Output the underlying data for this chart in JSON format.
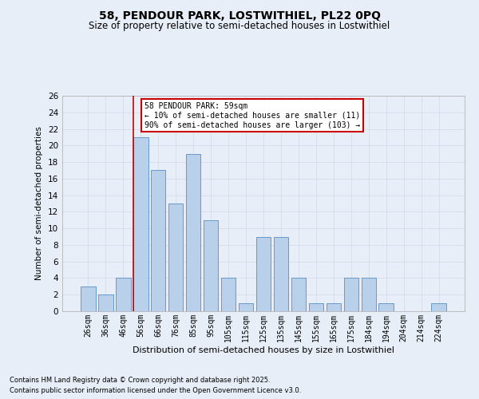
{
  "title1": "58, PENDOUR PARK, LOSTWITHIEL, PL22 0PQ",
  "title2": "Size of property relative to semi-detached houses in Lostwithiel",
  "xlabel": "Distribution of semi-detached houses by size in Lostwithiel",
  "ylabel": "Number of semi-detached properties",
  "categories": [
    "26sqm",
    "36sqm",
    "46sqm",
    "56sqm",
    "66sqm",
    "76sqm",
    "85sqm",
    "95sqm",
    "105sqm",
    "115sqm",
    "125sqm",
    "135sqm",
    "145sqm",
    "155sqm",
    "165sqm",
    "175sqm",
    "184sqm",
    "194sqm",
    "204sqm",
    "214sqm",
    "224sqm"
  ],
  "values": [
    3,
    2,
    4,
    21,
    17,
    13,
    19,
    11,
    4,
    1,
    9,
    9,
    4,
    1,
    1,
    4,
    4,
    1,
    0,
    0,
    1
  ],
  "bar_color": "#b8d0ea",
  "bar_edge_color": "#6699cc",
  "vline_color": "#cc0000",
  "vline_x_index": 3,
  "annotation_title": "58 PENDOUR PARK: 59sqm",
  "annotation_line1": "← 10% of semi-detached houses are smaller (11)",
  "annotation_line2": "90% of semi-detached houses are larger (103) →",
  "annotation_box_color": "#ffffff",
  "annotation_box_edge": "#cc0000",
  "ylim": [
    0,
    26
  ],
  "yticks": [
    0,
    2,
    4,
    6,
    8,
    10,
    12,
    14,
    16,
    18,
    20,
    22,
    24,
    26
  ],
  "footnote1": "Contains HM Land Registry data © Crown copyright and database right 2025.",
  "footnote2": "Contains public sector information licensed under the Open Government Licence v3.0.",
  "grid_color": "#d0d8e8",
  "background_color": "#e8eef8"
}
